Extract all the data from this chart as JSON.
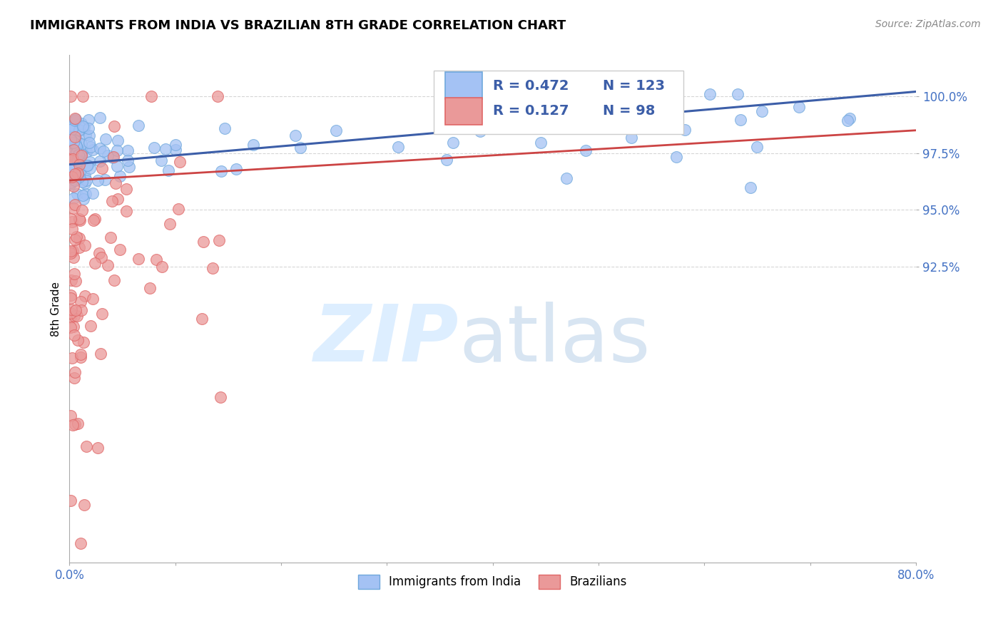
{
  "title": "IMMIGRANTS FROM INDIA VS BRAZILIAN 8TH GRADE CORRELATION CHART",
  "source": "Source: ZipAtlas.com",
  "ylabel": "8th Grade",
  "ytick_labels": [
    "100.0%",
    "97.5%",
    "95.0%",
    "92.5%"
  ],
  "ytick_values": [
    1.0,
    0.975,
    0.95,
    0.925
  ],
  "xlim": [
    0.0,
    0.8
  ],
  "ylim": [
    0.795,
    1.018
  ],
  "legend_india_R": "0.472",
  "legend_india_N": "123",
  "legend_brazil_R": "0.127",
  "legend_brazil_N": "98",
  "india_color": "#a4c2f4",
  "india_edge_color": "#6fa8dc",
  "brazil_color": "#ea9999",
  "brazil_edge_color": "#e06666",
  "india_line_color": "#3c5ea8",
  "brazil_line_color": "#cc4444",
  "title_fontsize": 13,
  "source_fontsize": 10,
  "axis_label_color": "#4472c4",
  "india_trend_x": [
    0.0,
    0.8
  ],
  "india_trend_y": [
    0.97,
    1.002
  ],
  "brazil_trend_x": [
    0.0,
    0.8
  ],
  "brazil_trend_y": [
    0.963,
    0.985
  ]
}
